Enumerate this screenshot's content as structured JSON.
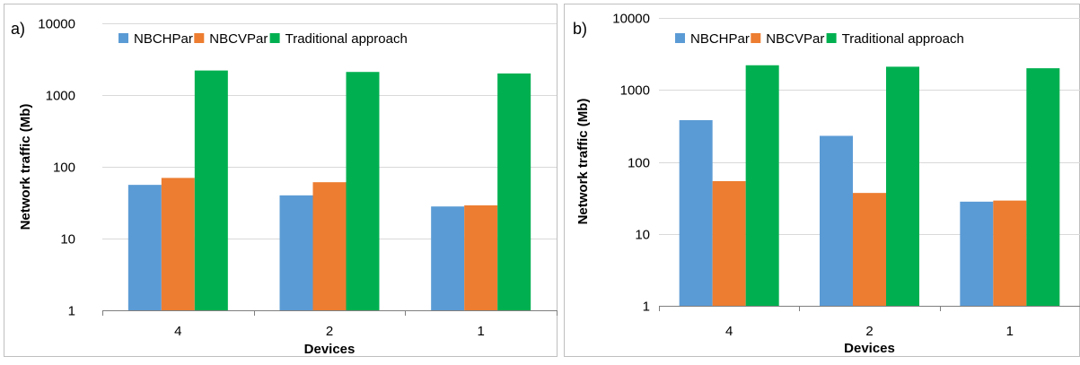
{
  "chart_data": [
    {
      "panel_label": "a)",
      "type": "bar",
      "scale": "log",
      "xlabel": "Devices",
      "ylabel": "Network traffic (Mb)",
      "categories": [
        "4",
        "2",
        "1"
      ],
      "yticks": [
        1,
        10,
        100,
        1000,
        10000
      ],
      "ytick_labels": [
        "1",
        "10",
        "100",
        "1000",
        "10000"
      ],
      "ylim": [
        1,
        10000
      ],
      "grid": true,
      "legend_position": "top",
      "series": [
        {
          "name": "NBCHPar",
          "color": "#5B9BD5",
          "values": [
            56,
            40,
            28
          ]
        },
        {
          "name": "NBCVPar",
          "color": "#ED7D31",
          "values": [
            70,
            61,
            29
          ]
        },
        {
          "name": "Traditional approach",
          "color": "#00B050",
          "values": [
            2200,
            2100,
            2000
          ]
        }
      ]
    },
    {
      "panel_label": "b)",
      "type": "bar",
      "scale": "log",
      "xlabel": "Devices",
      "ylabel": "Network traffic (Mb)",
      "categories": [
        "4",
        "2",
        "1"
      ],
      "yticks": [
        1,
        10,
        100,
        1000,
        10000
      ],
      "ytick_labels": [
        "1",
        "10",
        "100",
        "1000",
        "10000"
      ],
      "ylim": [
        1,
        10000
      ],
      "grid": true,
      "legend_position": "top",
      "series": [
        {
          "name": "NBCHPar",
          "color": "#5B9BD5",
          "values": [
            380,
            230,
            28
          ]
        },
        {
          "name": "NBCVPar",
          "color": "#ED7D31",
          "values": [
            54,
            37,
            29
          ]
        },
        {
          "name": "Traditional approach",
          "color": "#00B050",
          "values": [
            2200,
            2100,
            2000
          ]
        }
      ]
    }
  ]
}
